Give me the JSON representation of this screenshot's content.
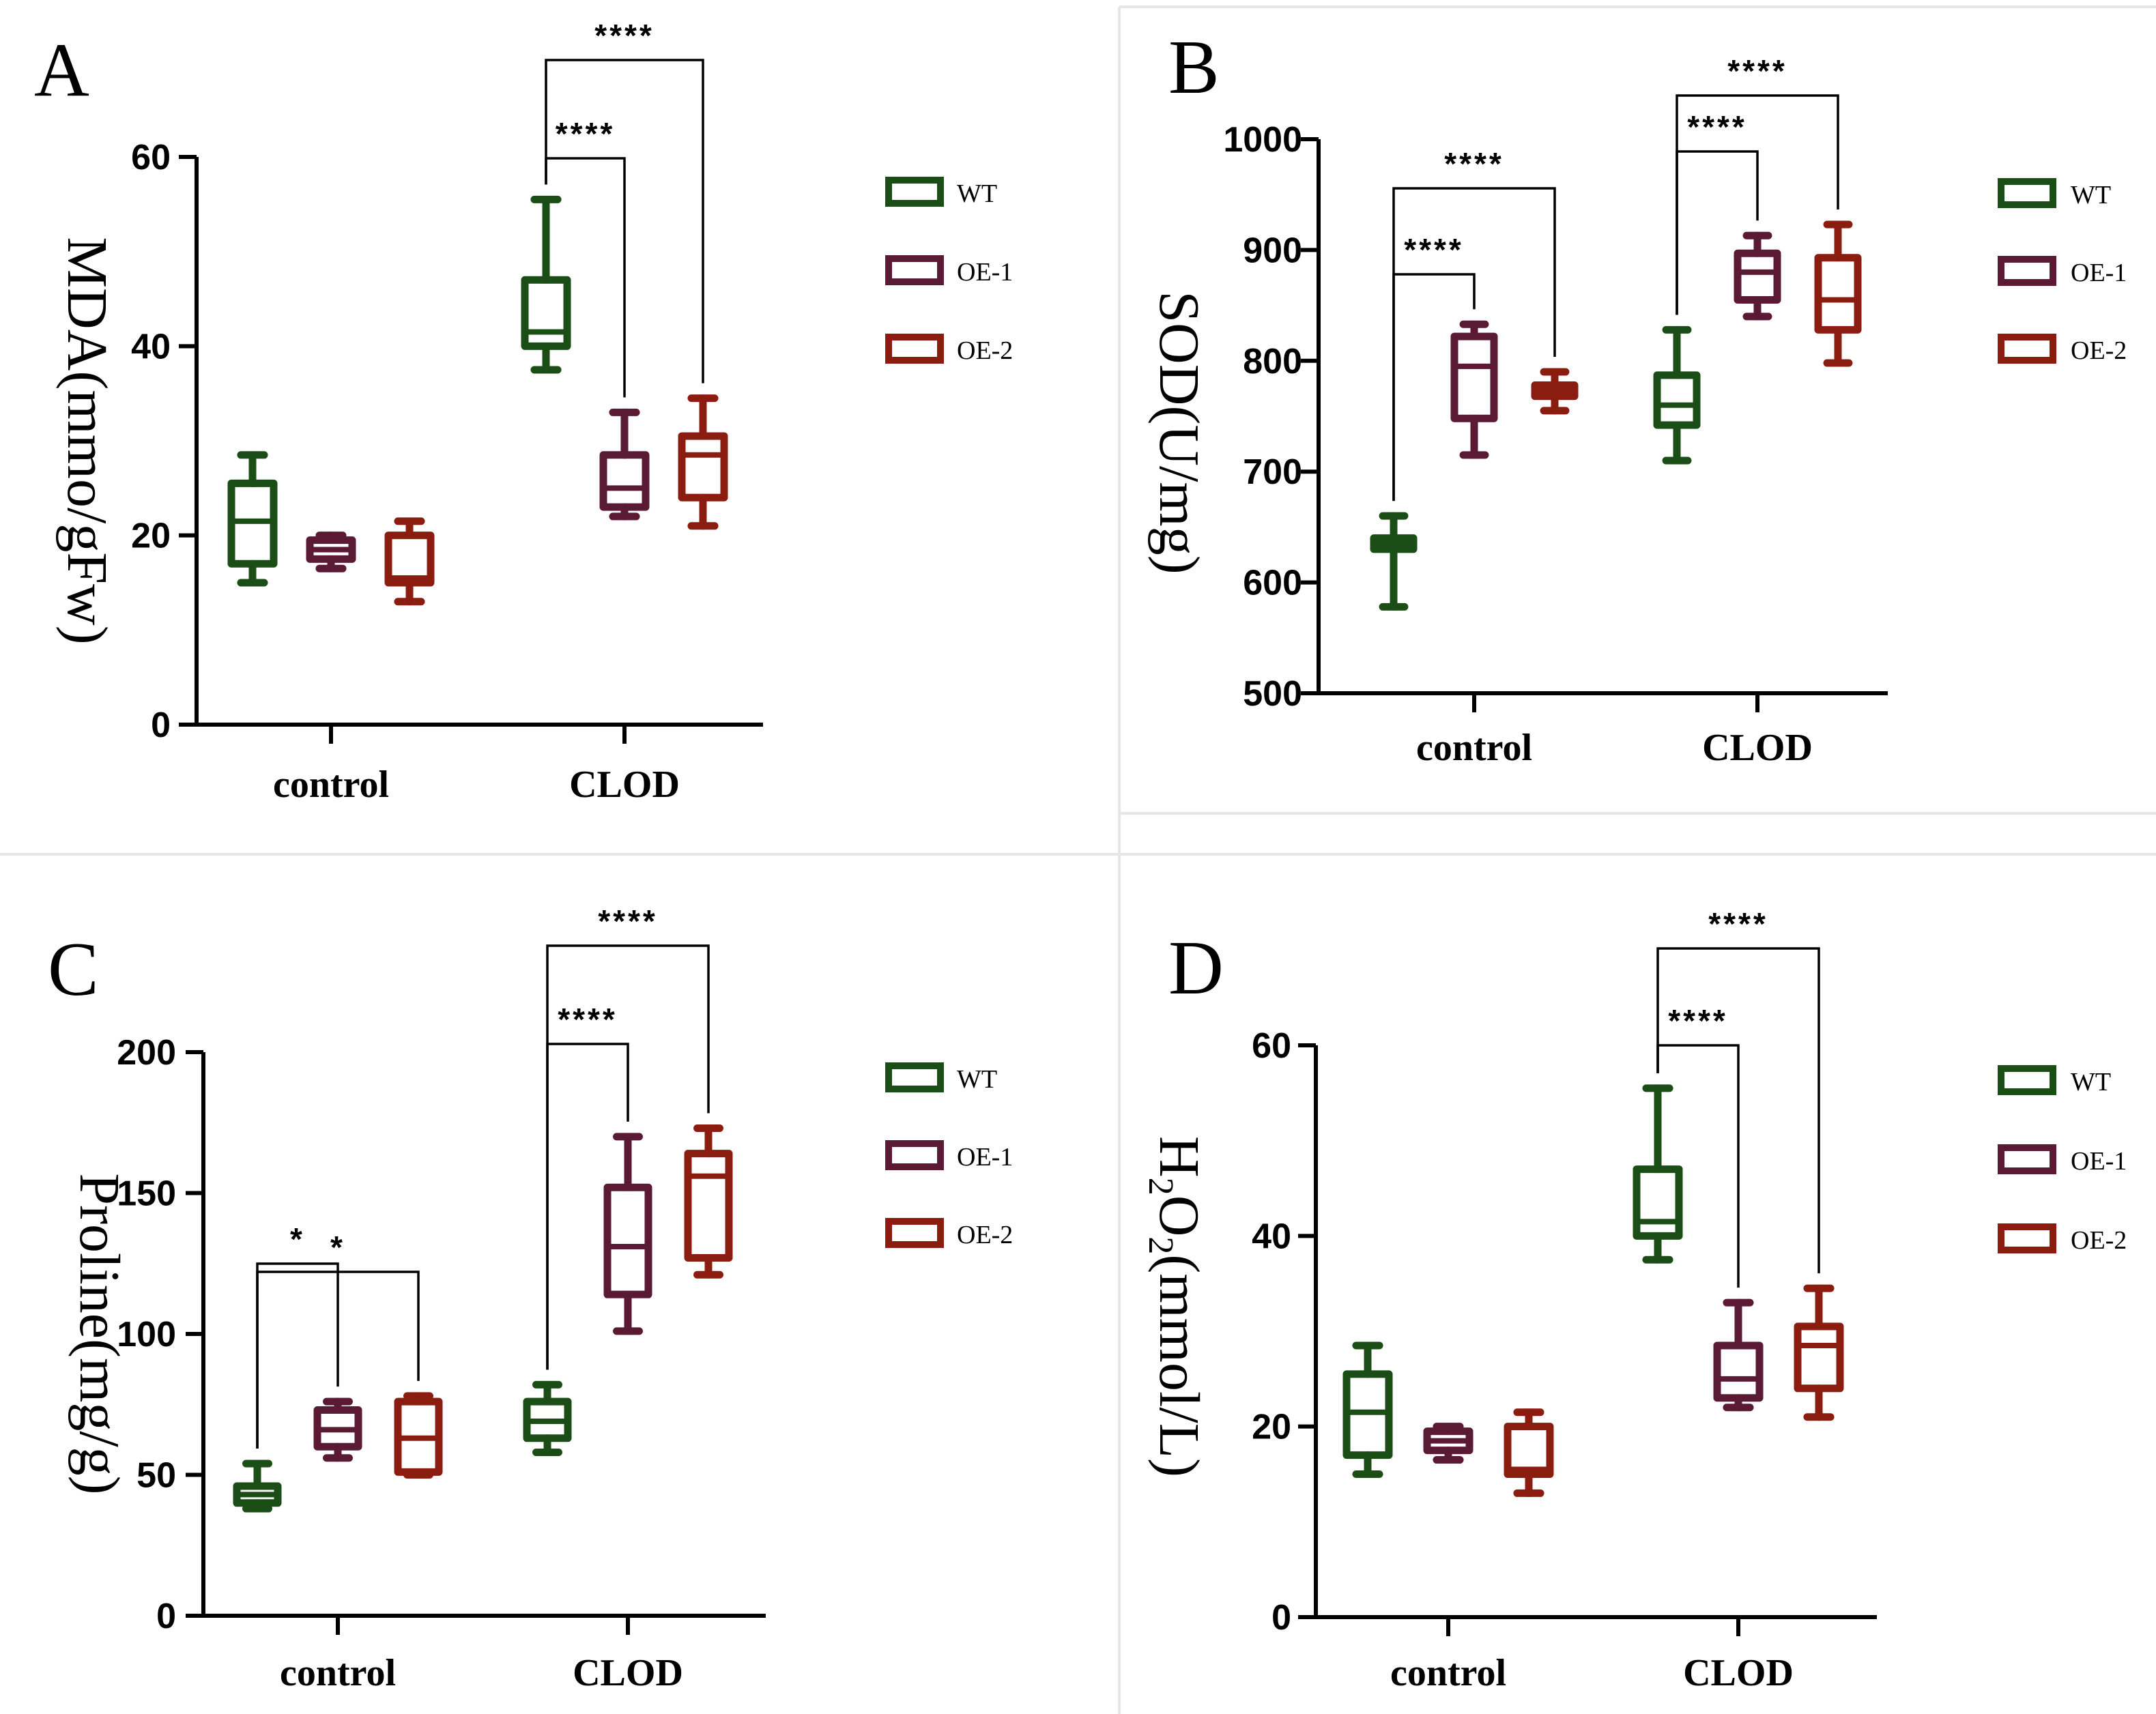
{
  "colors": {
    "WT": "#1b4d16",
    "OE-1": "#5b1a33",
    "OE-2": "#8b1c10"
  },
  "legend": [
    "WT",
    "OE-1",
    "OE-2"
  ],
  "chart_data": [
    {
      "id": "A",
      "panel_letter": "A",
      "type": "box",
      "title": "",
      "ylabel": "MDA(mmo/gFw)",
      "ylim": [
        0,
        60
      ],
      "yticks": [
        0,
        20,
        40,
        60
      ],
      "categories": [
        "control",
        "CLOD"
      ],
      "series": [
        {
          "name": "WT",
          "boxes": [
            {
              "category": "control",
              "min": 15,
              "q1": 17,
              "median": 21.5,
              "q3": 25.5,
              "max": 28.5
            },
            {
              "category": "CLOD",
              "min": 37.5,
              "q1": 40,
              "median": 41.5,
              "q3": 47,
              "max": 55.5
            }
          ]
        },
        {
          "name": "OE-1",
          "boxes": [
            {
              "category": "control",
              "min": 16.5,
              "q1": 17.5,
              "median": 18.5,
              "q3": 19.5,
              "max": 20
            },
            {
              "category": "CLOD",
              "min": 22,
              "q1": 23,
              "median": 25,
              "q3": 28.5,
              "max": 33
            }
          ]
        },
        {
          "name": "OE-2",
          "boxes": [
            {
              "category": "control",
              "min": 13,
              "q1": 15,
              "median": 15.5,
              "q3": 20,
              "max": 21.5
            },
            {
              "category": "CLOD",
              "min": 21,
              "q1": 24,
              "median": 28.5,
              "q3": 30.5,
              "max": 34.5
            }
          ]
        }
      ],
      "significance": [
        {
          "category": "CLOD",
          "from": "WT",
          "to": "OE-1",
          "label": "****",
          "level": 1
        },
        {
          "category": "CLOD",
          "from": "WT",
          "to": "OE-2",
          "label": "****",
          "level": 2
        }
      ]
    },
    {
      "id": "B",
      "panel_letter": "B",
      "type": "box",
      "title": "",
      "ylabel": "SOD(U/mg)",
      "ylim": [
        500,
        1000
      ],
      "yticks": [
        500,
        600,
        700,
        800,
        900,
        1000
      ],
      "categories": [
        "control",
        "CLOD"
      ],
      "series": [
        {
          "name": "WT",
          "boxes": [
            {
              "category": "control",
              "min": 578,
              "q1": 630,
              "median": 635,
              "q3": 640,
              "max": 660
            },
            {
              "category": "CLOD",
              "min": 710,
              "q1": 742,
              "median": 760,
              "q3": 787,
              "max": 828
            }
          ]
        },
        {
          "name": "OE-1",
          "boxes": [
            {
              "category": "control",
              "min": 715,
              "q1": 748,
              "median": 795,
              "q3": 822,
              "max": 833
            },
            {
              "category": "CLOD",
              "min": 840,
              "q1": 855,
              "median": 880,
              "q3": 897,
              "max": 913
            }
          ]
        },
        {
          "name": "OE-2",
          "boxes": [
            {
              "category": "control",
              "min": 755,
              "q1": 768,
              "median": 773,
              "q3": 778,
              "max": 790
            },
            {
              "category": "CLOD",
              "min": 798,
              "q1": 828,
              "median": 855,
              "q3": 893,
              "max": 923
            }
          ]
        }
      ],
      "significance": [
        {
          "category": "control",
          "from": "WT",
          "to": "OE-1",
          "label": "****",
          "level": 1
        },
        {
          "category": "control",
          "from": "WT",
          "to": "OE-2",
          "label": "****",
          "level": 2
        },
        {
          "category": "CLOD",
          "from": "WT",
          "to": "OE-1",
          "label": "****",
          "level": 1
        },
        {
          "category": "CLOD",
          "from": "WT",
          "to": "OE-2",
          "label": "****",
          "level": 2
        }
      ]
    },
    {
      "id": "C",
      "panel_letter": "C",
      "type": "box",
      "title": "",
      "ylabel": "Proline(mg/g)",
      "ylim": [
        0,
        200
      ],
      "yticks": [
        0,
        50,
        100,
        150,
        200
      ],
      "categories": [
        "control",
        "CLOD"
      ],
      "series": [
        {
          "name": "WT",
          "boxes": [
            {
              "category": "control",
              "min": 38,
              "q1": 40,
              "median": 43,
              "q3": 46,
              "max": 54
            },
            {
              "category": "CLOD",
              "min": 58,
              "q1": 63,
              "median": 69,
              "q3": 76,
              "max": 82
            }
          ]
        },
        {
          "name": "OE-1",
          "boxes": [
            {
              "category": "control",
              "min": 56,
              "q1": 60,
              "median": 66,
              "q3": 73,
              "max": 76
            },
            {
              "category": "CLOD",
              "min": 101,
              "q1": 114,
              "median": 131,
              "q3": 152,
              "max": 170
            }
          ]
        },
        {
          "name": "OE-2",
          "boxes": [
            {
              "category": "control",
              "min": 50,
              "q1": 51,
              "median": 63,
              "q3": 76,
              "max": 78
            },
            {
              "category": "CLOD",
              "min": 121,
              "q1": 127,
              "median": 156,
              "q3": 164,
              "max": 173
            }
          ]
        }
      ],
      "significance": [
        {
          "category": "control",
          "from": "WT",
          "to": "OE-1",
          "label": "*",
          "level": 1
        },
        {
          "category": "control",
          "from": "WT",
          "to": "OE-2",
          "label": "*",
          "level": 2
        },
        {
          "category": "CLOD",
          "from": "WT",
          "to": "OE-1",
          "label": "****",
          "level": 1
        },
        {
          "category": "CLOD",
          "from": "WT",
          "to": "OE-2",
          "label": "****",
          "level": 2
        }
      ]
    },
    {
      "id": "D",
      "panel_letter": "D",
      "type": "box",
      "title": "",
      "ylabel": "H2O2(mmol/L)",
      "ylabel_parts": [
        "H",
        "2",
        "O",
        "2",
        "(mmol/L)"
      ],
      "ylim": [
        0,
        60
      ],
      "yticks": [
        0,
        20,
        40,
        60
      ],
      "categories": [
        "control",
        "CLOD"
      ],
      "series": [
        {
          "name": "WT",
          "boxes": [
            {
              "category": "control",
              "min": 15,
              "q1": 17,
              "median": 21.5,
              "q3": 25.5,
              "max": 28.5
            },
            {
              "category": "CLOD",
              "min": 37.5,
              "q1": 40,
              "median": 41.5,
              "q3": 47,
              "max": 55.5
            }
          ]
        },
        {
          "name": "OE-1",
          "boxes": [
            {
              "category": "control",
              "min": 16.5,
              "q1": 17.5,
              "median": 18.5,
              "q3": 19.5,
              "max": 20
            },
            {
              "category": "CLOD",
              "min": 22,
              "q1": 23,
              "median": 25,
              "q3": 28.5,
              "max": 33
            }
          ]
        },
        {
          "name": "OE-2",
          "boxes": [
            {
              "category": "control",
              "min": 13,
              "q1": 15,
              "median": 15.5,
              "q3": 20,
              "max": 21.5
            },
            {
              "category": "CLOD",
              "min": 21,
              "q1": 24,
              "median": 28.5,
              "q3": 30.5,
              "max": 34.5
            }
          ]
        }
      ],
      "significance": [
        {
          "category": "CLOD",
          "from": "WT",
          "to": "OE-1",
          "label": "****",
          "level": 1
        },
        {
          "category": "CLOD",
          "from": "WT",
          "to": "OE-2",
          "label": "****",
          "level": 2
        }
      ]
    }
  ]
}
